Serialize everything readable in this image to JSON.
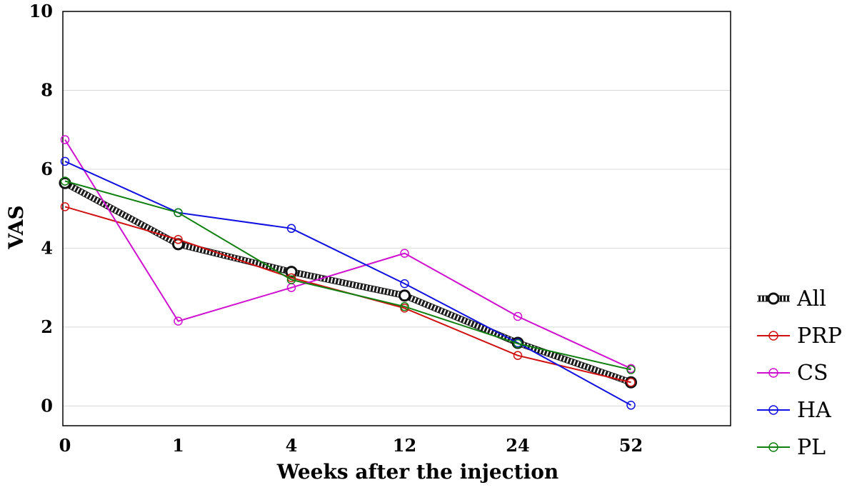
{
  "chart_data": {
    "type": "line",
    "title": "",
    "xlabel": "Weeks after the injection",
    "ylabel": "VAS",
    "categories": [
      "0",
      "1",
      "4",
      "12",
      "24",
      "52"
    ],
    "yticks": [
      "0",
      "2",
      "4",
      "6",
      "8",
      "10"
    ],
    "ylim": [
      -0.5,
      10
    ],
    "grid": true,
    "legend_position": "right",
    "series": [
      {
        "name": "All",
        "color": "#222222",
        "style": "thick-dashed",
        "values": [
          5.65,
          4.1,
          3.4,
          2.8,
          1.6,
          0.6
        ]
      },
      {
        "name": "PRP",
        "color": "#d01010",
        "values": [
          5.05,
          4.22,
          3.25,
          2.48,
          1.28,
          0.6
        ]
      },
      {
        "name": "CS",
        "color": "#d010d0",
        "values": [
          6.75,
          2.15,
          3.0,
          3.87,
          2.27,
          0.95
        ]
      },
      {
        "name": "HA",
        "color": "#1010e0",
        "values": [
          6.2,
          4.9,
          4.5,
          3.1,
          1.6,
          0.02
        ]
      },
      {
        "name": "PL",
        "color": "#108010",
        "values": [
          5.7,
          4.9,
          3.2,
          2.52,
          1.58,
          0.92
        ]
      }
    ]
  }
}
